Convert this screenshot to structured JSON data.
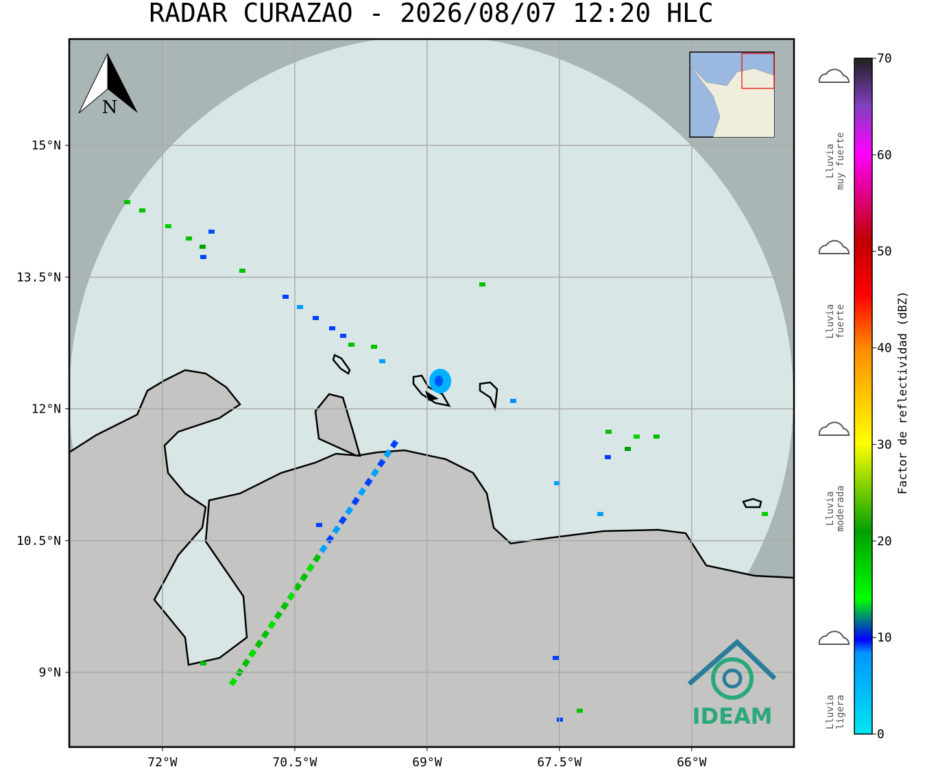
{
  "title": "RADAR CURAZAO - 2026/08/07 12:20 HLC",
  "map": {
    "xlim": [
      -73.057,
      -64.84
    ],
    "ylim": [
      8.15,
      16.21
    ],
    "xticks": [
      {
        "value": -72,
        "label": "72°W"
      },
      {
        "value": -70.5,
        "label": "70.5°W"
      },
      {
        "value": -69,
        "label": "69°W"
      },
      {
        "value": -67.5,
        "label": "67.5°W"
      },
      {
        "value": -66,
        "label": "66°W"
      }
    ],
    "yticks": [
      {
        "value": 15,
        "label": "15°N"
      },
      {
        "value": 13.5,
        "label": "13.5°N"
      },
      {
        "value": 12,
        "label": "12°N"
      },
      {
        "value": 10.5,
        "label": "10.5°N"
      },
      {
        "value": 9,
        "label": "9°N"
      }
    ],
    "grid": true,
    "north_label": "N",
    "logo": "IDEAM"
  },
  "colorbar": {
    "label": "Factor de reflectividad (dBZ)",
    "lim": [
      0,
      70
    ],
    "ticks": [
      0,
      10,
      20,
      30,
      40,
      50,
      60,
      70
    ]
  },
  "rain_levels": [
    {
      "lines": [
        "Lluvia",
        "muy fuerte"
      ]
    },
    {
      "lines": [
        "Lluvia",
        "fuerte"
      ]
    },
    {
      "lines": [
        "Lluvia",
        "moderada"
      ]
    },
    {
      "lines": [
        "Lluvia",
        "ligera"
      ]
    }
  ]
}
